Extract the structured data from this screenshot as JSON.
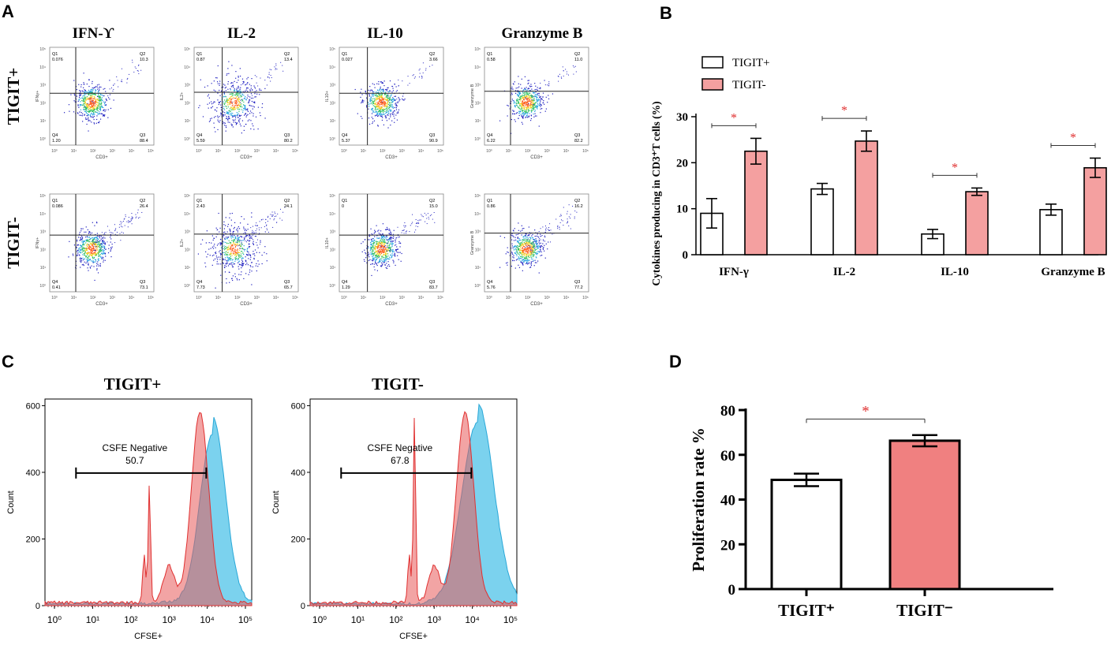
{
  "panels": {
    "a": "A",
    "b": "B",
    "c": "C",
    "d": "D"
  },
  "colors": {
    "tigit_pos": "#ffffff",
    "tigit_neg": "#f4a0a0",
    "tigit_neg_dark": "#f08080",
    "star": "#e03030",
    "hist_red": "#e85a5a",
    "hist_blue": "#4fc3e8",
    "dot_blue": "#2020c0"
  },
  "panel_a": {
    "columns": [
      "IFN-ϒ",
      "IL-2",
      "IL-10",
      "Granzyme B"
    ],
    "rows": [
      "TIGIT+",
      "TIGIT-"
    ],
    "xaxis": "CD3+",
    "yaxes": [
      "IFNγ+",
      "IL2+",
      "IL10+",
      "Granzyme B"
    ],
    "tick_labels": [
      "10⁰",
      "10¹",
      "10²",
      "10³",
      "10⁴",
      "10⁵"
    ],
    "quadrants": [
      [
        {
          "q1": "0.076",
          "q2": "10.3",
          "q4": "1.20",
          "q3": "88.4"
        },
        {
          "q1": "0.87",
          "q2": "13.4",
          "q4": "5.59",
          "q3": "80.2"
        },
        {
          "q1": "0.027",
          "q2": "3.66",
          "q4": "5.37",
          "q3": "90.9"
        },
        {
          "q1": "0.58",
          "q2": "11.0",
          "q4": "6.22",
          "q3": "82.2"
        }
      ],
      [
        {
          "q1": "0.086",
          "q2": "26.4",
          "q4": "0.41",
          "q3": "73.1"
        },
        {
          "q1": "2.43",
          "q2": "24.1",
          "q4": "7.73",
          "q3": "65.7"
        },
        {
          "q1": "0",
          "q2": "15.0",
          "q4": "1.29",
          "q3": "83.7"
        },
        {
          "q1": "0.86",
          "q2": "16.2",
          "q4": "5.76",
          "q3": "77.2"
        }
      ]
    ],
    "quad_names": {
      "q1": "Q1",
      "q2": "Q2",
      "q3": "Q3",
      "q4": "Q4"
    }
  },
  "chart_data": [
    {
      "type": "bar",
      "panel": "B",
      "title": "",
      "ylabel": "Cytokines producing in CD3⁺T cells (%)",
      "categories": [
        "IFN-γ",
        "IL-2",
        "IL-10",
        "Granzyme B"
      ],
      "series": [
        {
          "name": "TIGIT+",
          "values": [
            9,
            14.3,
            4.5,
            9.8
          ],
          "errors": [
            3.2,
            1.2,
            1,
            1.2
          ]
        },
        {
          "name": "TIGIT-",
          "values": [
            22.5,
            24.7,
            13.7,
            18.9
          ],
          "errors": [
            2.8,
            2.2,
            0.8,
            2.1
          ]
        }
      ],
      "significance": [
        "*",
        "*",
        "*",
        "*"
      ],
      "ylim": [
        0,
        30
      ],
      "yticks": [
        0,
        10,
        20,
        30
      ],
      "legend": "top-left"
    },
    {
      "type": "histogram",
      "panel": "C",
      "plots": [
        {
          "title": "TIGIT+",
          "gate_label": "CSFE Negative",
          "gate_value": "50.7",
          "yticks": [
            0,
            200,
            400,
            600
          ]
        },
        {
          "title": "TIGIT-",
          "gate_label": "CSFE Negative",
          "gate_value": "67.8",
          "yticks": [
            0,
            200,
            400,
            600
          ]
        }
      ],
      "xlabel": "CFSE+",
      "ylabel": "Count",
      "xticks": [
        "10⁰",
        "10¹",
        "10²",
        "10³",
        "10⁴",
        "10⁵"
      ]
    },
    {
      "type": "bar",
      "panel": "D",
      "ylabel": "Proliferation rate %",
      "categories": [
        "TIGIT⁺",
        "TIGIT⁻"
      ],
      "values": [
        48.8,
        66.3
      ],
      "errors": [
        2.8,
        2.5
      ],
      "significance": "*",
      "ylim": [
        0,
        80
      ],
      "yticks": [
        0,
        20,
        40,
        60,
        80
      ]
    }
  ]
}
